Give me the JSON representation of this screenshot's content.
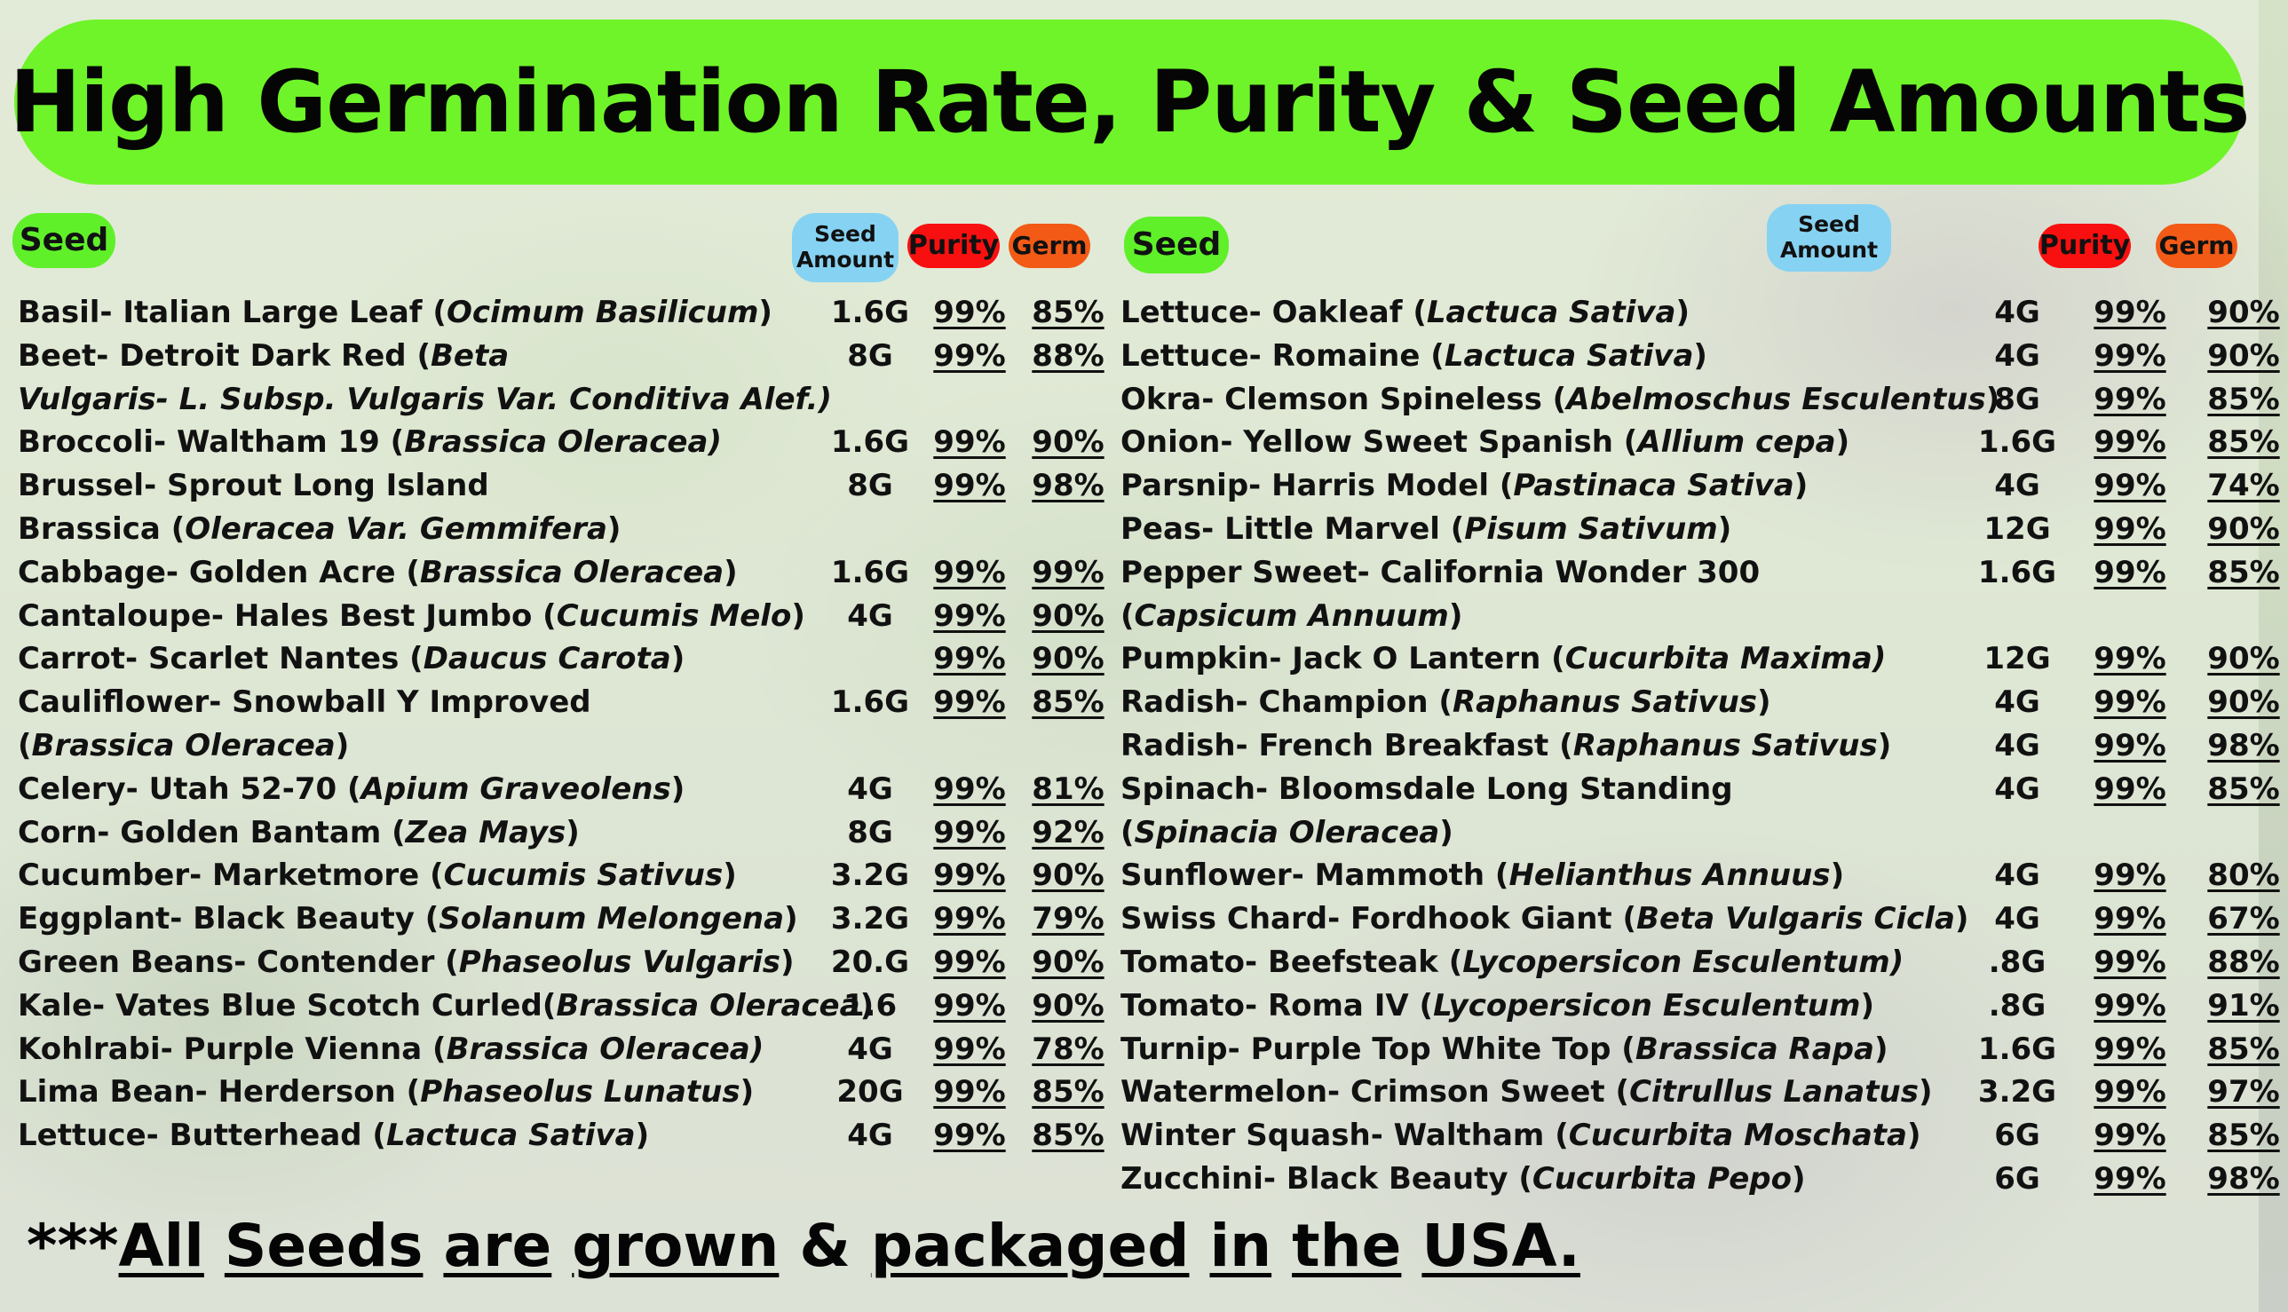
{
  "title": "High Germination Rate, Purity & Seed Amounts",
  "headers": {
    "seed": "Seed",
    "amount": "Seed Amount",
    "purity": "Purity",
    "germ": "Germ"
  },
  "colors": {
    "banner": "#6ff42a",
    "seed_pill": "#5ff02a",
    "amount_pill": "#86d2f2",
    "purity_pill": "#f81010",
    "germ_pill": "#f25a16"
  },
  "left_rows": [
    {
      "n": "Basil- Italian Large Leaf (",
      "s": "Ocimum Basilicum",
      "e": ")",
      "a": "1.6G",
      "p": "99%",
      "g": "85%"
    },
    {
      "n": "Beet- Detroit Dark Red (",
      "s": "Beta",
      "e": "",
      "a": "8G",
      "p": "99%",
      "g": "88%"
    },
    {
      "n": "",
      "s": "Vulgaris- L. Subsp. Vulgaris Var. Conditiva Alef.)",
      "e": "",
      "a": "",
      "p": "",
      "g": ""
    },
    {
      "n": "Broccoli- Waltham 19 (",
      "s": "Brassica Oleracea)",
      "e": "",
      "a": "1.6G",
      "p": "99%",
      "g": "90%"
    },
    {
      "n": "Brussel- Sprout Long Island",
      "s": "",
      "e": "",
      "a": "8G",
      "p": "99%",
      "g": "98%"
    },
    {
      "n": "Brassica (",
      "s": "Oleracea Var. Gemmifera",
      "e": ")",
      "a": "",
      "p": "",
      "g": ""
    },
    {
      "n": "Cabbage- Golden Acre (",
      "s": "Brassica Oleracea",
      "e": ")",
      "a": "1.6G",
      "p": "99%",
      "g": "99%"
    },
    {
      "n": "Cantaloupe- Hales Best Jumbo (",
      "s": "Cucumis Melo",
      "e": ")",
      "a": "4G",
      "p": "99%",
      "g": "90%"
    },
    {
      "n": "Carrot- Scarlet Nantes (",
      "s": "Daucus Carota",
      "e": ")",
      "a": "",
      "p": "99%",
      "g": "90%"
    },
    {
      "n": "Cauliflower- Snowball Y Improved",
      "s": "",
      "e": "",
      "a": "1.6G",
      "p": "99%",
      "g": "85%"
    },
    {
      "n": "(",
      "s": "Brassica Oleracea",
      "e": ")",
      "a": "",
      "p": "",
      "g": ""
    },
    {
      "n": "Celery- Utah 52-70 (",
      "s": "Apium Graveolens",
      "e": ")",
      "a": "4G",
      "p": "99%",
      "g": "81%"
    },
    {
      "n": "Corn- Golden Bantam (",
      "s": "Zea Mays",
      "e": ")",
      "a": "8G",
      "p": "99%",
      "g": "92%"
    },
    {
      "n": "Cucumber- Marketmore (",
      "s": "Cucumis Sativus",
      "e": ")",
      "a": "3.2G",
      "p": "99%",
      "g": "90%"
    },
    {
      "n": "Eggplant- Black Beauty (",
      "s": "Solanum Melongena",
      "e": ")",
      "a": "3.2G",
      "p": "99%",
      "g": "79%"
    },
    {
      "n": "Green Beans- Contender (",
      "s": "Phaseolus Vulgaris",
      "e": ")",
      "a": "20.G",
      "p": "99%",
      "g": "90%"
    },
    {
      "n": "Kale- Vates Blue Scotch Curled(",
      "s": "Brassica Oleracea",
      "e": ")",
      "a": "1.6",
      "p": "99%",
      "g": "90%"
    },
    {
      "n": "Kohlrabi- Purple Vienna (",
      "s": "Brassica Oleracea)",
      "e": "",
      "a": "4G",
      "p": "99%",
      "g": "78%"
    },
    {
      "n": "Lima Bean- Herderson (",
      "s": "Phaseolus Lunatus",
      "e": ")",
      "a": "20G",
      "p": "99%",
      "g": "85%"
    },
    {
      "n": "Lettuce- Butterhead (",
      "s": "Lactuca Sativa",
      "e": ")",
      "a": "4G",
      "p": "99%",
      "g": "85%"
    }
  ],
  "right_rows": [
    {
      "n": "Lettuce- Oakleaf (",
      "s": "Lactuca Sativa",
      "e": ")",
      "a": "4G",
      "p": "99%",
      "g": "90%"
    },
    {
      "n": "Lettuce- Romaine (",
      "s": "Lactuca Sativa",
      "e": ")",
      "a": "4G",
      "p": "99%",
      "g": "90%"
    },
    {
      "n": "Okra- Clemson Spineless (",
      "s": "Abelmoschus Esculentus",
      "e": ")",
      "a": "8G",
      "p": "99%",
      "g": "85%"
    },
    {
      "n": "Onion- Yellow Sweet Spanish (",
      "s": "Allium cepa",
      "e": ")",
      "a": "1.6G",
      "p": "99%",
      "g": "85%"
    },
    {
      "n": "Parsnip- Harris Model (",
      "s": "Pastinaca Sativa",
      "e": ")",
      "a": "4G",
      "p": "99%",
      "g": "74%"
    },
    {
      "n": "Peas- Little Marvel (",
      "s": "Pisum Sativum",
      "e": ")",
      "a": "12G",
      "p": "99%",
      "g": "90%"
    },
    {
      "n": "Pepper Sweet- California Wonder 300",
      "s": "",
      "e": "",
      "a": "1.6G",
      "p": "99%",
      "g": "85%"
    },
    {
      "n": "(",
      "s": "Capsicum Annuum",
      "e": ")",
      "a": "",
      "p": "",
      "g": ""
    },
    {
      "n": "Pumpkin- Jack O Lantern (",
      "s": "Cucurbita Maxima)",
      "e": "",
      "a": "12G",
      "p": "99%",
      "g": "90%"
    },
    {
      "n": "Radish- Champion (",
      "s": "Raphanus Sativus",
      "e": ")",
      "a": "4G",
      "p": "99%",
      "g": "90%"
    },
    {
      "n": "Radish- French Breakfast (",
      "s": "Raphanus Sativus",
      "e": ")",
      "a": "4G",
      "p": "99%",
      "g": "98%"
    },
    {
      "n": "Spinach- Bloomsdale Long Standing",
      "s": "",
      "e": "",
      "a": "4G",
      "p": "99%",
      "g": "85%"
    },
    {
      "n": "(",
      "s": "Spinacia Oleracea",
      "e": ")",
      "a": "",
      "p": "",
      "g": ""
    },
    {
      "n": "Sunflower- Mammoth (",
      "s": "Helianthus Annuus",
      "e": ")",
      "a": "4G",
      "p": "99%",
      "g": "80%"
    },
    {
      "n": "Swiss Chard- Fordhook Giant (",
      "s": "Beta Vulgaris Cicla",
      "e": ")",
      "a": "4G",
      "p": "99%",
      "g": "67%"
    },
    {
      "n": "Tomato- Beefsteak (",
      "s": "Lycopersicon Esculentum)",
      "e": "",
      "a": ".8G",
      "p": "99%",
      "g": "88%"
    },
    {
      "n": "Tomato- Roma IV  (",
      "s": "Lycopersicon Esculentum",
      "e": ")",
      "a": ".8G",
      "p": "99%",
      "g": "91%"
    },
    {
      "n": "Turnip- Purple Top White Top (",
      "s": "Brassica Rapa",
      "e": ")",
      "a": "1.6G",
      "p": "99%",
      "g": "85%"
    },
    {
      "n": "Watermelon- Crimson Sweet (",
      "s": "Citrullus Lanatus",
      "e": ")",
      "a": "3.2G",
      "p": "99%",
      "g": "97%"
    },
    {
      "n": "Winter Squash- Waltham (",
      "s": "Cucurbita Moschata",
      "e": ")",
      "a": "6G",
      "p": "99%",
      "g": "85%"
    },
    {
      "n": "Zucchini-  Black Beauty (",
      "s": "Cucurbita Pepo",
      "e": ")",
      "a": "6G",
      "p": "99%",
      "g": "98%"
    }
  ],
  "footer": {
    "prefix": "***",
    "parts": [
      "All",
      " ",
      "Seeds",
      " ",
      "are",
      " ",
      "grown",
      " & ",
      "packaged",
      " ",
      "in",
      " ",
      "the",
      " ",
      "USA.",
      " "
    ]
  }
}
